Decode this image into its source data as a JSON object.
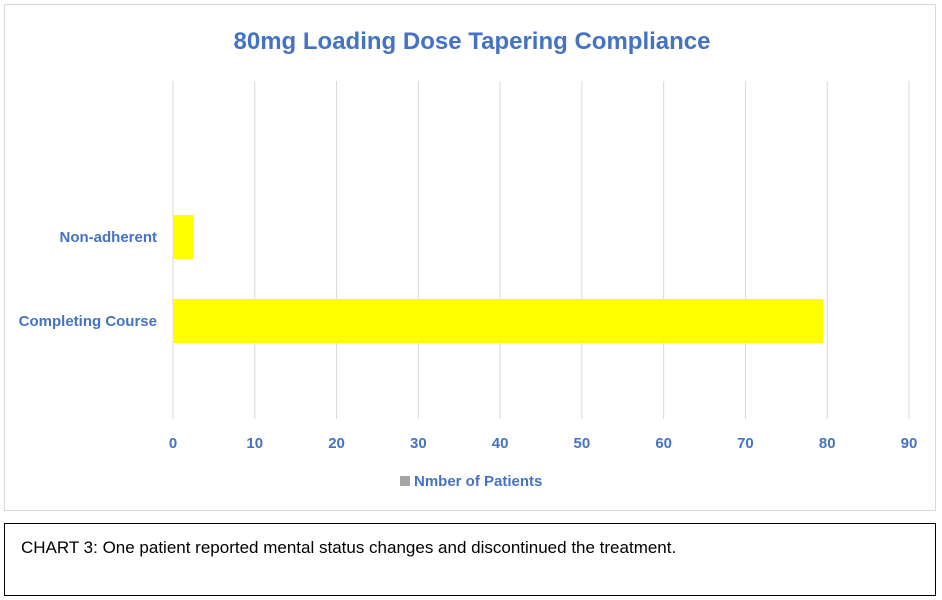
{
  "chart_data": {
    "type": "bar",
    "orientation": "horizontal",
    "title": "80mg Loading Dose Tapering Compliance",
    "categories": [
      "Non-adherent",
      "Completing Course"
    ],
    "series": [
      {
        "name": "Nmber of Patients",
        "values": [
          2.5,
          79.5
        ],
        "color": "#ffff00"
      }
    ],
    "xlim": [
      0,
      90
    ],
    "xticks": [
      0,
      10,
      20,
      30,
      40,
      50,
      60,
      70,
      80,
      90
    ],
    "grid": true,
    "legend_position": "bottom",
    "label_color": "#4472c4",
    "grid_color": "#d9d9d9",
    "legend_marker_color": "#a5a5a5"
  },
  "caption": "CHART 3: One patient reported mental status changes and discontinued the treatment."
}
